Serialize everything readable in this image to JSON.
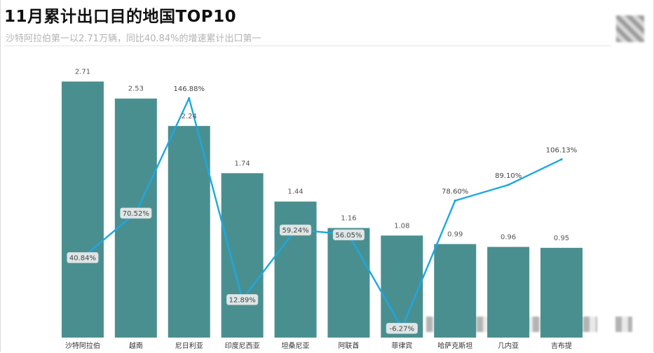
{
  "header": {
    "title": "11月累计出口目的地国TOP10",
    "subtitle": "沙特阿拉伯第一以2.71万辆，同比40.84%的增速累计出口第一"
  },
  "chart_data": {
    "type": "bar",
    "categories": [
      "沙特阿拉伯",
      "越南",
      "尼日利亚",
      "印度尼西亚",
      "坦桑尼亚",
      "阿联酋",
      "菲律宾",
      "哈萨克斯坦",
      "几内亚",
      "吉布提"
    ],
    "series": [
      {
        "type": "bar",
        "values": [
          2.71,
          2.53,
          2.24,
          1.74,
          1.44,
          1.16,
          1.08,
          0.99,
          0.96,
          0.95
        ]
      },
      {
        "type": "line",
        "values": [
          40.84,
          70.52,
          146.88,
          12.89,
          59.24,
          56.05,
          -6.27,
          78.6,
          89.1,
          106.13
        ]
      }
    ],
    "bar_labels": [
      "2.71",
      "2.53",
      "2.24",
      "1.74",
      "1.44",
      "1.16",
      "1.08",
      "0.99",
      "0.96",
      "0.95"
    ],
    "line_labels": [
      "40.84%",
      "70.52%",
      "146.88%",
      "12.89%",
      "59.24%",
      "56.05%",
      "-6.27%",
      "78.60%",
      "89.10%",
      "106.13%"
    ],
    "boxed_line_labels": [
      0,
      1,
      3,
      4,
      5,
      6
    ],
    "bar_color": "#4a8f90",
    "line_color": "#1ea7e0",
    "bar_ylim": [
      0,
      2.98
    ],
    "line_ylim": [
      -15,
      175
    ],
    "grid": false,
    "legend": "none"
  }
}
